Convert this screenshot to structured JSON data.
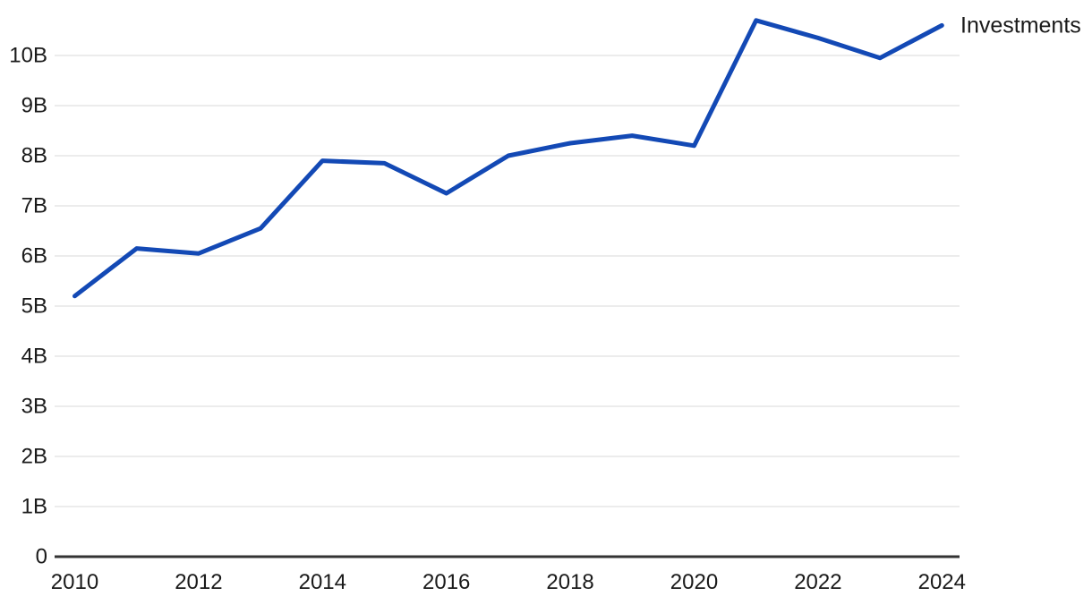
{
  "chart_data": {
    "type": "line",
    "title": "",
    "xlabel": "",
    "ylabel": "",
    "x": [
      2010,
      2011,
      2012,
      2013,
      2014,
      2015,
      2016,
      2017,
      2018,
      2019,
      2020,
      2021,
      2022,
      2023,
      2024
    ],
    "series": [
      {
        "name": "Investments",
        "values": [
          5.2,
          6.15,
          6.05,
          6.55,
          7.9,
          7.85,
          7.25,
          8.0,
          8.25,
          8.4,
          8.2,
          10.7,
          10.35,
          9.95,
          10.6
        ]
      }
    ],
    "unit": "B",
    "ylim": [
      0,
      11
    ],
    "yticks": [
      0,
      1,
      2,
      3,
      4,
      5,
      6,
      7,
      8,
      9,
      10
    ],
    "ytick_labels": [
      "0",
      "1B",
      "2B",
      "3B",
      "4B",
      "5B",
      "6B",
      "7B",
      "8B",
      "9B",
      "10B"
    ],
    "xticks": [
      2010,
      2012,
      2014,
      2016,
      2018,
      2020,
      2022,
      2024
    ],
    "xtick_labels": [
      "2010",
      "2012",
      "2014",
      "2016",
      "2018",
      "2020",
      "2022",
      "2024"
    ],
    "grid": "horizontal-only",
    "legend_position": "inline-right-of-line-end"
  },
  "colors": {
    "line": "#1349b5",
    "grid": "#ececec",
    "axis": "#333333",
    "tick_text": "#1a1a1a",
    "series_label_text": "#1a1a1a",
    "background": "#ffffff"
  }
}
